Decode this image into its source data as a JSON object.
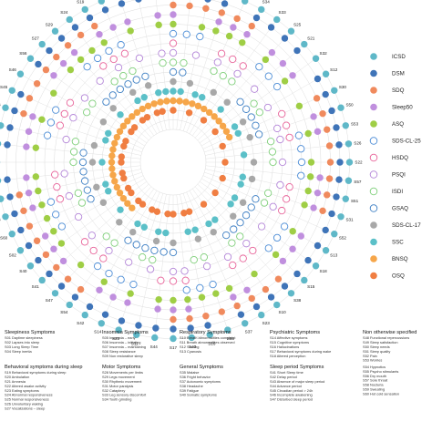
{
  "chart_data": {
    "type": "scatter",
    "subtype": "radial",
    "rings": 16,
    "spokes": [
      "S01",
      "S02",
      "S03",
      "S04",
      "S05",
      "S06",
      "S07",
      "S08",
      "S09",
      "S10",
      "S11",
      "S12",
      "S13",
      "S14",
      "S15",
      "S16",
      "S17",
      "S18",
      "S19",
      "S20",
      "S21",
      "S22",
      "S23",
      "S24",
      "S25",
      "S26",
      "S27",
      "S28",
      "S29",
      "S30",
      "S31",
      "S32",
      "S33",
      "S34",
      "S35",
      "S36",
      "S37",
      "S38",
      "S39",
      "S40",
      "S41",
      "S42",
      "S43",
      "S44",
      "S45",
      "S46",
      "S47",
      "S48",
      "S49",
      "S50",
      "S51",
      "S52",
      "S53",
      "S54",
      "S55",
      "S56",
      "S57",
      "S58",
      "S59",
      "S60"
    ],
    "spoke_order": [
      "S06",
      "S01",
      "S05",
      "S36",
      "S35",
      "S34",
      "S33",
      "S25",
      "S21",
      "S32",
      "S12",
      "S30",
      "S50",
      "S53",
      "S26",
      "S22",
      "S57",
      "S51",
      "S31",
      "S52",
      "S13",
      "S18",
      "S15",
      "S38",
      "S10",
      "S23",
      "S37",
      "S55",
      "S16",
      "S43",
      "S17",
      "S44",
      "S11",
      "S20",
      "S14",
      "S42",
      "S54",
      "S47",
      "S41",
      "S40",
      "S02",
      "S60",
      "S48",
      "S39",
      "S58",
      "S07",
      "S59",
      "S49",
      "S28",
      "S45",
      "S46",
      "S56",
      "S27",
      "S29",
      "S24",
      "S19",
      "S09",
      "S04",
      "S08",
      "S03"
    ],
    "series": [
      {
        "name": "ICSD",
        "color": "#5fb8c8",
        "ring": 16,
        "style": "filled"
      },
      {
        "name": "DSM",
        "color": "#3f74b8",
        "ring": 15,
        "style": "filled"
      },
      {
        "name": "SDQ",
        "color": "#f08a5d",
        "ring": 14,
        "style": "filled"
      },
      {
        "name": "Sleep50",
        "color": "#c08fde",
        "ring": 13,
        "style": "filled"
      },
      {
        "name": "ASQ",
        "color": "#9fce45",
        "ring": 12,
        "style": "filled"
      },
      {
        "name": "SDS-CL-25",
        "color": "#4b8cd6",
        "ring": 11,
        "style": "hollow"
      },
      {
        "name": "HSDQ",
        "color": "#e8649a",
        "ring": 10,
        "style": "hollow"
      },
      {
        "name": "PSQI",
        "color": "#b486d8",
        "ring": 9,
        "style": "hollow"
      },
      {
        "name": "ISDI",
        "color": "#7fcf7a",
        "ring": 8,
        "style": "hollow"
      },
      {
        "name": "GSAQ",
        "color": "#3d7fc4",
        "ring": 7,
        "style": "hollow"
      },
      {
        "name": "SDS-CL-17",
        "color": "#a8a8a8",
        "ring": 6,
        "style": "filled"
      },
      {
        "name": "SSC",
        "color": "#5bc0c8",
        "ring": 5,
        "style": "filled"
      },
      {
        "name": "BNSQ",
        "color": "#f6a64a",
        "ring": 4,
        "style": "filled"
      },
      {
        "name": "OSQ",
        "color": "#f07e42",
        "ring": 3,
        "style": "filled"
      }
    ],
    "xlabel": "",
    "ylabel": "",
    "grid": true,
    "legend_position": "right"
  },
  "groups": [
    {
      "title": "Sleepiness Symptoms",
      "items": [
        "S01 Daytime sleepiness",
        "S02 Lapses into sleep",
        "S03 Long Sleep Time",
        "S04 Sleep inertia"
      ]
    },
    {
      "title": "Insomnia Symptoms",
      "items": [
        "S05 Insomnia – early",
        "S06 Insomnia – initiating",
        "S07 Insomnia – maintaining",
        "S08 Sleep resistance",
        "S09 Non restorative sleep"
      ]
    },
    {
      "title": "Respiratory Symptoms",
      "items": [
        "S10 Breath abnormalities complaint",
        "S11 Breath abnormalities observed",
        "S12 Snoring",
        "S13 Cyanosis"
      ]
    },
    {
      "title": "Psychiatric Symptoms",
      "items": [
        "S14 Affective symptoms",
        "S15 Cognitive symptoms",
        "S16 Hallucinations",
        "S17 Behavioral symptoms during wake",
        "S18 Altered perception"
      ]
    },
    {
      "title": "Non otherwise specified",
      "items": [
        "S48 Functional repercussions",
        "S49 Sleep satisfaction",
        "S50 Sleep needs",
        "S51 Sleep quality",
        "S52 Pain",
        "S53 Worries"
      ]
    },
    {
      "title": "Behavioral symptoms during sleep",
      "items": [
        "S19 Behavioral symptoms during sleep",
        "S20 Ambulation",
        "S21 Amnesia",
        "S22 Altered awake activity",
        "S23 Eating symptoms",
        "S24 Abnormal responsiveness",
        "S25 Normal responsiveness",
        "S26 Unvoluntary waking",
        "S27 Vocalizations – sleep"
      ]
    },
    {
      "title": "Motor Symptoms",
      "items": [
        "S28 Movements per limbs",
        "S29 Legs movement",
        "S30 Rhythmic movement",
        "S31 Motor paralysis",
        "S32 Cataplexy",
        "S33 Leg sensory discomfort",
        "S34 Tooth grinding"
      ]
    },
    {
      "title": "General Symptoms",
      "items": [
        "S35 Malaise",
        "S36 Fright behavior",
        "S37 Autonomic symptoms",
        "S38 Headache",
        "S39 Fatigue",
        "S40 Somatic symptoms"
      ]
    },
    {
      "title": "Sleep period Symptoms",
      "items": [
        "S41 Short Sleep time",
        "S42 Delay period",
        "S43 Absence of major sleep period",
        "S44 Advance period",
        "S45 Circadian period > 24h",
        "S46 Incomplete awakening",
        "S47 Disturbed sleep period"
      ]
    },
    {
      "title": "",
      "items": [
        "S54 Hypnotics",
        "S55 Psycho stimulants",
        "S56 Dry mouth",
        "S57 Sore throat",
        "S58 Nocturia",
        "S59 Sweating",
        "S60 Hot cold sensation"
      ]
    }
  ]
}
